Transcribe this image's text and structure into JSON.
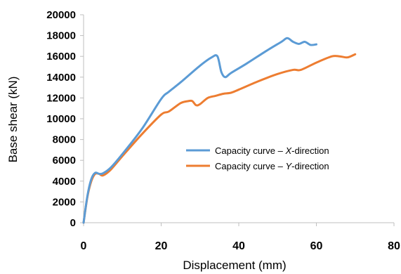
{
  "chart_data": {
    "type": "line",
    "title": "",
    "xlabel": "Displacement (mm)",
    "ylabel": "Base shear (kN)",
    "xlim": [
      0,
      80
    ],
    "ylim": [
      0,
      20000
    ],
    "x_ticks": [
      0,
      20,
      40,
      60,
      80
    ],
    "y_ticks": [
      0,
      2000,
      4000,
      6000,
      8000,
      10000,
      12000,
      14000,
      16000,
      18000,
      20000
    ],
    "grid": false,
    "legend_position": "center-right",
    "series": [
      {
        "name": "Capacity curve – X-direction",
        "legend_prefix": "Capacity curve – ",
        "legend_axis": "X",
        "legend_suffix": "-direction",
        "color": "#5B9BD5",
        "x": [
          0,
          1,
          2,
          3,
          4,
          5,
          7,
          10,
          15,
          20,
          22,
          25,
          30,
          33,
          34.5,
          35.5,
          36.5,
          38,
          42,
          47,
          51,
          52.5,
          54,
          55.5,
          57,
          58.5,
          60
        ],
        "y": [
          0,
          2600,
          4200,
          4800,
          4700,
          4750,
          5300,
          6600,
          9000,
          11900,
          12600,
          13500,
          15100,
          15900,
          16000,
          14500,
          14000,
          14400,
          15300,
          16500,
          17400,
          17750,
          17400,
          17200,
          17400,
          17100,
          17150
        ]
      },
      {
        "name": "Capacity curve – Y-direction",
        "legend_prefix": "Capacity curve – ",
        "legend_axis": "Y",
        "legend_suffix": "-direction",
        "color": "#ED7D31",
        "x": [
          0,
          1,
          2,
          3,
          4,
          5,
          7,
          10,
          15,
          20,
          22,
          25,
          27,
          28,
          29,
          30,
          32,
          34,
          36,
          38,
          40,
          45,
          50,
          54,
          56,
          60,
          64,
          66,
          68,
          70
        ],
        "y": [
          0,
          2500,
          4000,
          4700,
          4700,
          4550,
          5100,
          6400,
          8500,
          10400,
          10700,
          11500,
          11700,
          11700,
          11300,
          11400,
          12000,
          12200,
          12400,
          12500,
          12800,
          13600,
          14300,
          14700,
          14700,
          15400,
          16000,
          16000,
          15900,
          16200
        ]
      }
    ]
  }
}
